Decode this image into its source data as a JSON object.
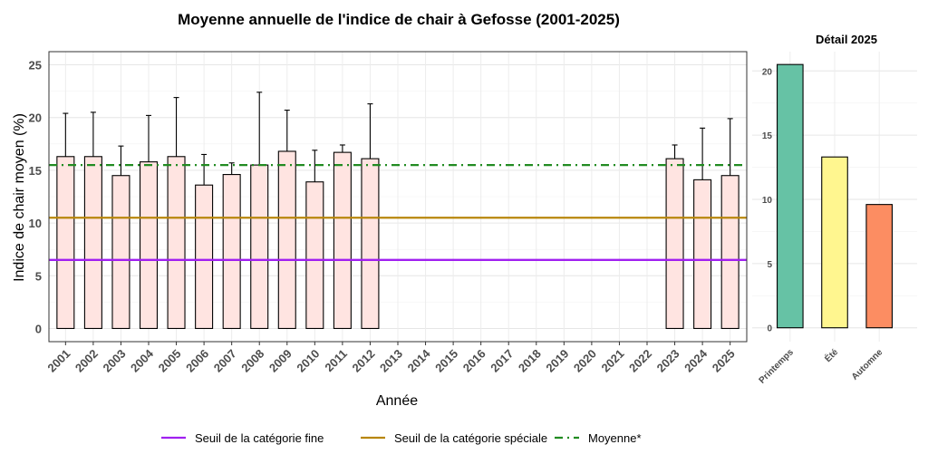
{
  "chart_data": [
    {
      "type": "bar",
      "title": "Moyenne annuelle de l'indice de chair à Gefosse (2001-2025)",
      "xlabel": "Année",
      "ylabel": "Indice de chair moyen (%)",
      "ylim": [
        0,
        25
      ],
      "yticks": [
        0,
        5,
        10,
        15,
        20,
        25
      ],
      "grid": true,
      "categories": [
        "2001",
        "2002",
        "2003",
        "2004",
        "2005",
        "2006",
        "2007",
        "2008",
        "2009",
        "2010",
        "2011",
        "2012",
        "2013",
        "2014",
        "2015",
        "2016",
        "2017",
        "2018",
        "2019",
        "2020",
        "2021",
        "2022",
        "2023",
        "2024",
        "2025"
      ],
      "values": [
        16.3,
        16.3,
        14.5,
        15.8,
        16.3,
        13.6,
        14.6,
        15.5,
        16.8,
        13.9,
        16.7,
        16.1,
        null,
        null,
        null,
        null,
        null,
        null,
        null,
        null,
        null,
        null,
        16.1,
        14.1,
        14.5
      ],
      "error_upper": [
        20.4,
        20.5,
        17.3,
        20.2,
        21.9,
        16.5,
        15.7,
        22.4,
        20.7,
        16.9,
        17.4,
        21.3,
        null,
        null,
        null,
        null,
        null,
        null,
        null,
        null,
        null,
        null,
        17.4,
        19.0,
        19.9
      ],
      "bar_color": "#FFE4E1",
      "reference_lines": [
        {
          "name": "Seuil de la catégorie fine",
          "value": 6.5,
          "color": "#A020F0",
          "style": "solid"
        },
        {
          "name": "Seuil de la catégorie spéciale",
          "value": 10.5,
          "color": "#B8860B",
          "style": "solid"
        },
        {
          "name": "Moyenne*",
          "value": 15.5,
          "color": "#228B22",
          "style": "dashdot"
        }
      ],
      "legend_position": "bottom"
    },
    {
      "type": "bar",
      "title": "Détail 2025",
      "categories": [
        "Printemps",
        "Été",
        "Automne"
      ],
      "values": [
        20.5,
        13.3,
        9.6
      ],
      "colors": [
        "#66C2A5",
        "#FFF68F",
        "#FC8D62"
      ],
      "ylim": [
        0,
        21.5
      ],
      "yticks": [
        0,
        5,
        10,
        15,
        20
      ],
      "grid": true
    }
  ]
}
